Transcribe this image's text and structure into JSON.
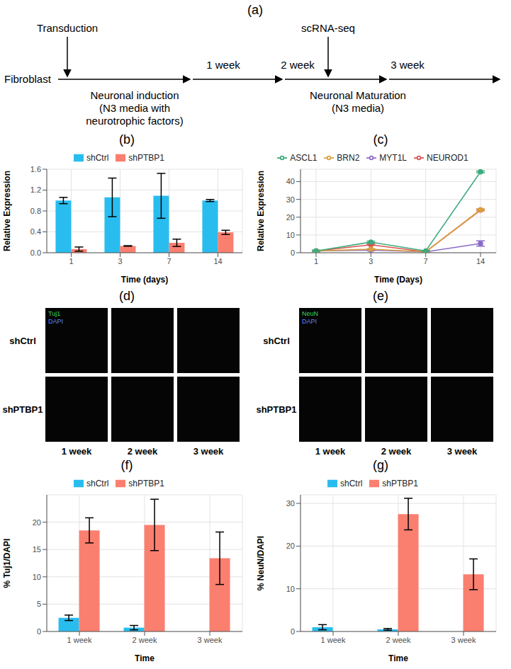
{
  "diagram": {
    "label": "(a)",
    "start": "Fibroblast",
    "events": [
      {
        "text": "Transduction"
      },
      {
        "text": "scRNA-seq"
      }
    ],
    "timepoints": [
      "1 week",
      "2 week",
      "3 week"
    ],
    "stages": [
      {
        "title": "Neuronal induction",
        "notes": [
          "(N3 media with",
          "neurotrophic factors)"
        ]
      },
      {
        "title": "Neuronal Maturation",
        "notes": [
          "(N3 media)"
        ]
      }
    ]
  },
  "chart_data": [
    {
      "label": "(b)",
      "type": "bar",
      "xlabel": "Time (days)",
      "ylabel": "Relative Expression",
      "categories": [
        1,
        3,
        7,
        14
      ],
      "series": [
        {
          "name": "shCtrl",
          "color": "#29BDEF",
          "values": [
            1.0,
            1.06,
            1.09,
            1.0
          ],
          "errors": [
            0.06,
            0.37,
            0.43,
            0.02
          ]
        },
        {
          "name": "shPTBP1",
          "color": "#FA7F6F",
          "values": [
            0.07,
            0.13,
            0.19,
            0.39
          ],
          "errors": [
            0.04,
            0.005,
            0.07,
            0.04
          ]
        }
      ],
      "ylim": [
        0,
        1.6
      ],
      "yticks": [
        {
          "value": 0,
          "label": "0.0"
        },
        0.4,
        0.8,
        1.2,
        1.6
      ],
      "grid": true,
      "legend": "top"
    },
    {
      "label": "(c)",
      "type": "line",
      "xlabel": "Time (Days)",
      "ylabel": "Relative Expression",
      "categories": [
        1,
        3,
        7,
        14
      ],
      "marker": "circle",
      "series": [
        {
          "name": "NEUROD1",
          "color": "#D9534F",
          "values": [
            1,
            4.5,
            0.5,
            24
          ],
          "errors": [
            0.3,
            0.3,
            0.2,
            0.4
          ]
        },
        {
          "name": "MYT1L",
          "color": "#8C6BC8",
          "values": [
            1,
            1.5,
            0.5,
            5.2
          ],
          "errors": [
            0.3,
            0.3,
            0.2,
            1.5
          ]
        },
        {
          "name": "BRN2",
          "color": "#D9A03F",
          "values": [
            1,
            2,
            0.5,
            24.2
          ],
          "errors": [
            0.3,
            0.3,
            0.2,
            0.5
          ]
        },
        {
          "name": "ASCL1",
          "color": "#3DAA7D",
          "values": [
            1,
            6,
            1,
            45.5
          ],
          "errors": [
            0.5,
            0.5,
            0.3,
            0.5
          ]
        }
      ],
      "ylim": [
        0,
        47
      ],
      "yticks": [
        0,
        10,
        20,
        30,
        40
      ],
      "grid": true,
      "legend": "top"
    },
    {
      "label": "(f)",
      "type": "bar",
      "xlabel": "Time",
      "ylabel": "% Tuj1/DAPI",
      "categories": [
        "1 week",
        "2 week",
        "3 week"
      ],
      "series": [
        {
          "name": "shCtrl",
          "color": "#29BDEF",
          "values": [
            2.5,
            0.7,
            0
          ],
          "errors": [
            0.5,
            0.4,
            0
          ]
        },
        {
          "name": "shPTBP1",
          "color": "#FA7F6F",
          "values": [
            18.5,
            19.5,
            13.4
          ],
          "errors": [
            2.3,
            4.7,
            4.8
          ]
        }
      ],
      "ylim": [
        0,
        25
      ],
      "yticks": [
        0,
        5,
        10,
        15,
        20
      ],
      "grid": true,
      "legend": "top"
    },
    {
      "label": "(g)",
      "type": "bar",
      "xlabel": "Time",
      "ylabel": "% NeuN/DAPI",
      "categories": [
        "1 week",
        "2 week",
        "3 week"
      ],
      "series": [
        {
          "name": "shCtrl",
          "color": "#29BDEF",
          "values": [
            1.0,
            0.5,
            0
          ],
          "errors": [
            0.6,
            0.2,
            0
          ]
        },
        {
          "name": "shPTBP1",
          "color": "#FA7F6F",
          "values": [
            0,
            27.5,
            13.4
          ],
          "errors": [
            0,
            3.7,
            3.6
          ]
        }
      ],
      "ylim": [
        0,
        32
      ],
      "yticks": [
        0,
        10,
        20,
        30
      ],
      "grid": true,
      "legend": "top"
    }
  ],
  "images": [
    {
      "label": "(d)",
      "channels": [
        {
          "name": "Tuj1",
          "color": "#3BD65A"
        },
        {
          "name": "DAPI",
          "color": "#5A86FF"
        }
      ],
      "rows": [
        "shCtrl",
        "shPTBP1"
      ],
      "columns": [
        "1 week",
        "2 week",
        "3 week"
      ]
    },
    {
      "label": "(e)",
      "channels": [
        {
          "name": "NeuN",
          "color": "#3BD65A"
        },
        {
          "name": "DAPI",
          "color": "#5A86FF"
        }
      ],
      "rows": [
        "shCtrl",
        "shPTBP1"
      ],
      "columns": [
        "1 week",
        "2 week",
        "3 week"
      ]
    }
  ]
}
